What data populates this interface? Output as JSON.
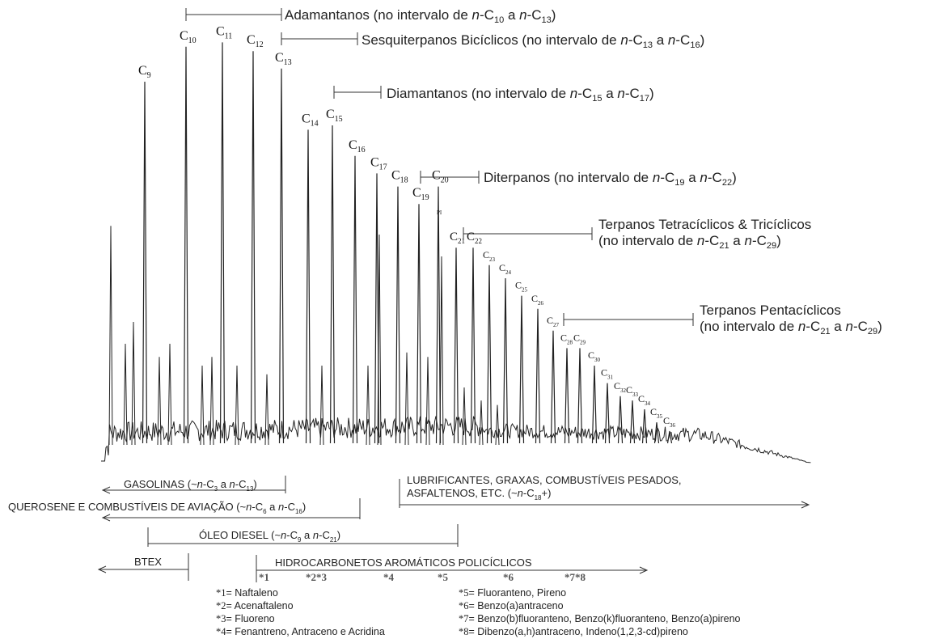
{
  "chart_data": {
    "type": "line",
    "title": "",
    "xlabel": "",
    "ylabel": "",
    "peaks": [
      {
        "label": "9",
        "height": 0.85
      },
      {
        "label": "10",
        "height": 0.93
      },
      {
        "label": "11",
        "height": 0.94
      },
      {
        "label": "12",
        "height": 0.92
      },
      {
        "label": "13",
        "height": 0.88
      },
      {
        "label": "14",
        "height": 0.74
      },
      {
        "label": "15",
        "height": 0.75
      },
      {
        "label": "16",
        "height": 0.68
      },
      {
        "label": "17",
        "height": 0.64
      },
      {
        "label": "18",
        "height": 0.61
      },
      {
        "label": "19",
        "height": 0.57
      },
      {
        "label": "20",
        "height": 0.61
      },
      {
        "label": "21",
        "height": 0.47
      },
      {
        "label": "22",
        "height": 0.47
      },
      {
        "label": "23",
        "height": 0.43
      },
      {
        "label": "24",
        "height": 0.4
      },
      {
        "label": "25",
        "height": 0.36
      },
      {
        "label": "26",
        "height": 0.33
      },
      {
        "label": "27",
        "height": 0.28
      },
      {
        "label": "28",
        "height": 0.24
      },
      {
        "label": "29",
        "height": 0.24
      },
      {
        "label": "30",
        "height": 0.2
      },
      {
        "label": "31",
        "height": 0.16
      },
      {
        "label": "32",
        "height": 0.13
      },
      {
        "label": "33",
        "height": 0.12
      },
      {
        "label": "34",
        "height": 0.1
      },
      {
        "label": "35",
        "height": 0.07
      },
      {
        "label": "36",
        "height": 0.05
      }
    ],
    "pi_label": "PI",
    "biomarkers": [
      {
        "name": "Adamantanos (no intervalo de ",
        "n": "n",
        "a": "10",
        "b": "13"
      },
      {
        "name": "Sesquiterpanos Bicíclicos (no intervalo de ",
        "n": "n",
        "a": "13",
        "b": "16"
      },
      {
        "name": "Diamantanos (no intervalo de ",
        "n": "n",
        "a": "15",
        "b": "17"
      },
      {
        "name": "Diterpanos (no intervalo de ",
        "n": "n",
        "a": "19",
        "b": "22"
      },
      {
        "name": "Terpanos Tetracíclicos & Tricíclicos",
        "line2": "(no intervalo de ",
        "n": "n",
        "a": "21",
        "b": "29"
      },
      {
        "name": "Terpanos Pentacíclicos",
        "line2": "(no intervalo de ",
        "n": "n",
        "a": "21",
        "b": "29"
      }
    ],
    "products": [
      {
        "name": "GASOLINAS (~",
        "a": "3",
        "b": "13"
      },
      {
        "name": "QUEROSENE E COMBUSTÍVEIS DE AVIAÇÃO (~",
        "a": "6",
        "b": "16"
      },
      {
        "name": "ÓLEO DIESEL (~",
        "a": "9",
        "b": "21"
      },
      {
        "name": "LUBRIFICANTES, GRAXAS, COMBUSTÍVEIS PESADOS,",
        "line2": "ASFALTENOS, ETC. (~",
        "a": "18",
        "suffix": "+)"
      },
      {
        "name": "BTEX"
      },
      {
        "name": "HIDROCARBONETOS AROMÁTICOS POLICÍCLICOS"
      }
    ],
    "pah_marks": [
      "*1",
      "*2*3",
      "*4",
      "*5",
      "*6",
      "*7*8"
    ],
    "pah_legend_left": [
      {
        "key": "*1",
        "text": "Naftaleno"
      },
      {
        "key": "*2",
        "text": "Acenaftaleno"
      },
      {
        "key": "*3",
        "text": "Fluoreno"
      },
      {
        "key": "*4",
        "text": "Fenantreno, Antraceno e Acridina"
      }
    ],
    "pah_legend_right": [
      {
        "key": "*5",
        "text": "Fluoranteno, Pireno"
      },
      {
        "key": "*6",
        "text": "Benzo(a)antraceno"
      },
      {
        "key": "*7",
        "text": "Benzo(b)fluoranteno, Benzo(k)fluoranteno, Benzo(a)pireno"
      },
      {
        "key": "*8",
        "text": "Dibenzo(a,h)antraceno, Indeno(1,2,3-cd)pireno"
      }
    ],
    "common": {
      "c": "C",
      "a_word": " a ",
      "n": "n",
      "dash": "-",
      "close": ")",
      "eq": "="
    },
    "colors": {
      "trace": "#222222",
      "text": "#222222"
    }
  }
}
